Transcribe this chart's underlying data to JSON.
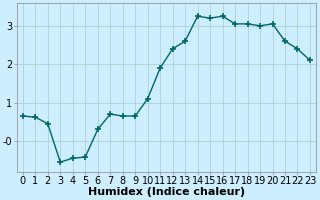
{
  "x": [
    0,
    1,
    2,
    3,
    4,
    5,
    6,
    7,
    8,
    9,
    10,
    11,
    12,
    13,
    14,
    15,
    16,
    17,
    18,
    19,
    20,
    21,
    22,
    23
  ],
  "y": [
    0.65,
    0.62,
    0.45,
    -0.55,
    -0.45,
    -0.42,
    0.3,
    0.7,
    0.65,
    0.65,
    1.1,
    1.9,
    2.4,
    2.6,
    3.25,
    3.2,
    3.25,
    3.05,
    3.05,
    3.0,
    3.05,
    2.6,
    2.4,
    2.1
  ],
  "line_color": "#006666",
  "marker_color": "#006666",
  "bg_color": "#cceeff",
  "grid_color": "#b0d0d0",
  "xlabel": "Humidex (Indice chaleur)",
  "xlim": [
    -0.5,
    23.5
  ],
  "ylim": [
    -0.8,
    3.6
  ],
  "xticks": [
    0,
    1,
    2,
    3,
    4,
    5,
    6,
    7,
    8,
    9,
    10,
    11,
    12,
    13,
    14,
    15,
    16,
    17,
    18,
    19,
    20,
    21,
    22,
    23
  ],
  "yticks": [
    0,
    1,
    2,
    3
  ],
  "ytick_labels": [
    "-0",
    "1",
    "2",
    "3"
  ],
  "xlabel_fontsize": 8,
  "tick_fontsize": 7,
  "linewidth": 1.0,
  "markersize": 4.0
}
